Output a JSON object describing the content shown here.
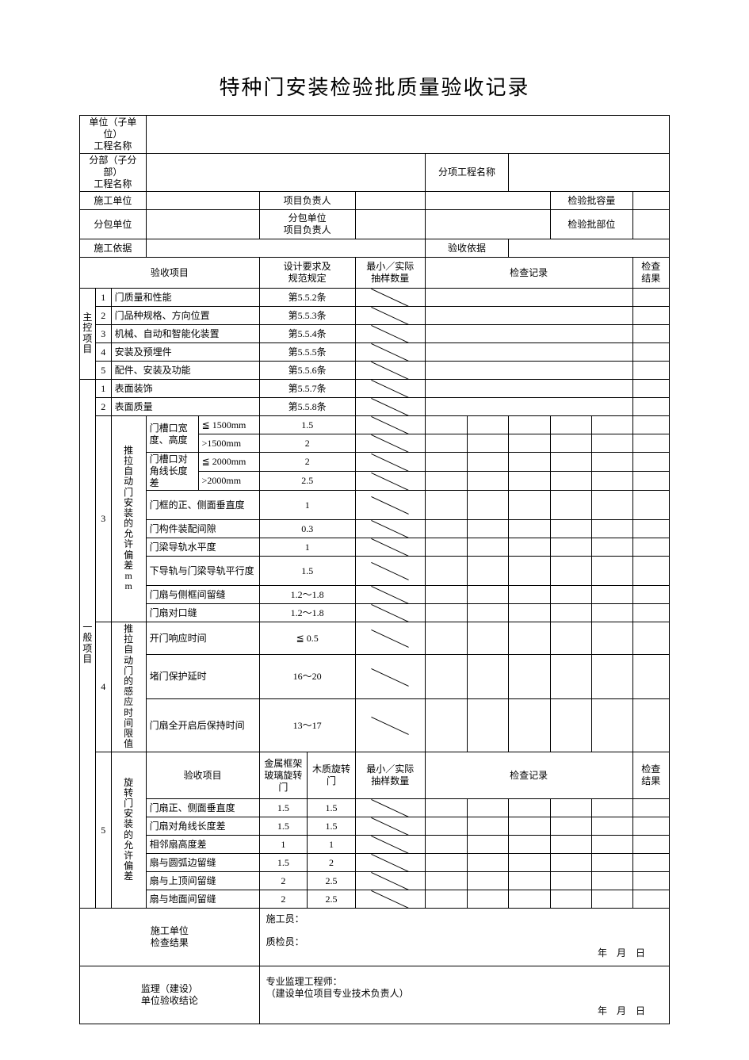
{
  "title": "特种门安装检验批质量验收记录",
  "header": {
    "r1c1": "单位（子单位）\n工程名称",
    "r2c1": "分部（子分部）\n工程名称",
    "r2c3": "分项工程名称",
    "r3c1": "施工单位",
    "r3c3": "项目负责人",
    "r3c5": "检验批容量",
    "r4c1": "分包单位",
    "r4c3": "分包单位\n项目负责人",
    "r4c5": "检验批部位",
    "r5c1": "施工依据",
    "r5c3": "验收依据",
    "th_item": "验收项目",
    "th_spec": "设计要求及\n规范规定",
    "th_sample": "最小／实际\n抽样数量",
    "th_record": "检查记录",
    "th_result": "检查\n结果"
  },
  "vlabels": {
    "main": "主控项目",
    "general": "一般项目"
  },
  "main_items": [
    {
      "n": "1",
      "name": "门质量和性能",
      "spec": "第5.5.2条"
    },
    {
      "n": "2",
      "name": "门品种规格、方向位置",
      "spec": "第5.5.3条"
    },
    {
      "n": "3",
      "name": "机械、自动和智能化装置",
      "spec": "第5.5.4条"
    },
    {
      "n": "4",
      "name": "安装及预埋件",
      "spec": "第5.5.5条"
    },
    {
      "n": "5",
      "name": "配件、安装及功能",
      "spec": "第5.5.6条"
    }
  ],
  "gen_simple": [
    {
      "n": "1",
      "name": "表面装饰",
      "spec": "第5.5.7条"
    },
    {
      "n": "2",
      "name": "表面质量",
      "spec": "第5.5.8条"
    }
  ],
  "group3": {
    "n": "3",
    "label": "推拉自动门安装的允许偏差mm",
    "rows": [
      {
        "a": "门槽口宽度、高度",
        "b": "≦ 1500mm",
        "spec": "1.5"
      },
      {
        "a": "",
        "b": ">1500mm",
        "spec": "2"
      },
      {
        "a": "门槽口对角线长度差",
        "b": "≦ 2000mm",
        "spec": "2"
      },
      {
        "a": "",
        "b": ">2000mm",
        "spec": "2.5"
      },
      {
        "a": "门框的正、侧面垂直度",
        "b": "",
        "spec": "1",
        "tall": true
      },
      {
        "a": "门构件装配间隙",
        "b": "",
        "spec": "0.3"
      },
      {
        "a": "门梁导轨水平度",
        "b": "",
        "spec": "1"
      },
      {
        "a": "下导轨与门梁导轨平行度",
        "b": "",
        "spec": "1.5",
        "tall": true
      },
      {
        "a": "门扇与侧框间留缝",
        "b": "",
        "spec": "1.2～1.8"
      },
      {
        "a": "门扇对口缝",
        "b": "",
        "spec": "1.2～1.8"
      }
    ]
  },
  "group4": {
    "n": "4",
    "label": "推拉自动门的感应时间限值",
    "rows": [
      {
        "a": "开门响应时间",
        "spec": "≦ 0.5"
      },
      {
        "a": "堵门保护延时",
        "spec": "16～20"
      },
      {
        "a": "门扇全开启后保持时间",
        "spec": "13～17",
        "tall": true
      }
    ]
  },
  "group5": {
    "n": "5",
    "label": "旋转门安装的允许偏差",
    "header": {
      "item": "验收项目",
      "c1": "金属框架玻璃旋转门",
      "c2": "木质旋转门",
      "sample": "最小／实际\n抽样数量",
      "rec": "检查记录",
      "res": "检查\n结果"
    },
    "rows": [
      {
        "a": "门扇正、侧面垂直度",
        "v1": "1.5",
        "v2": "1.5"
      },
      {
        "a": "门扇对角线长度差",
        "v1": "1.5",
        "v2": "1.5"
      },
      {
        "a": "相邻扇高度差",
        "v1": "1",
        "v2": "1"
      },
      {
        "a": "扇与圆弧边留缝",
        "v1": "1.5",
        "v2": "2"
      },
      {
        "a": "扇与上顶间留缝",
        "v1": "2",
        "v2": "2.5"
      },
      {
        "a": "扇与地面间留缝",
        "v1": "2",
        "v2": "2.5"
      }
    ]
  },
  "footer": {
    "l1": "施工单位\n检查结果",
    "r1a": "施工员：",
    "r1b": "质检员：",
    "date": "年　月　日",
    "l2": "监理（建设）\n单位验收结论",
    "r2a": "专业监理工程师：",
    "r2b": "（建设单位项目专业技术负责人）"
  },
  "colors": {
    "border": "#000000",
    "bg": "#ffffff",
    "text": "#000000"
  }
}
